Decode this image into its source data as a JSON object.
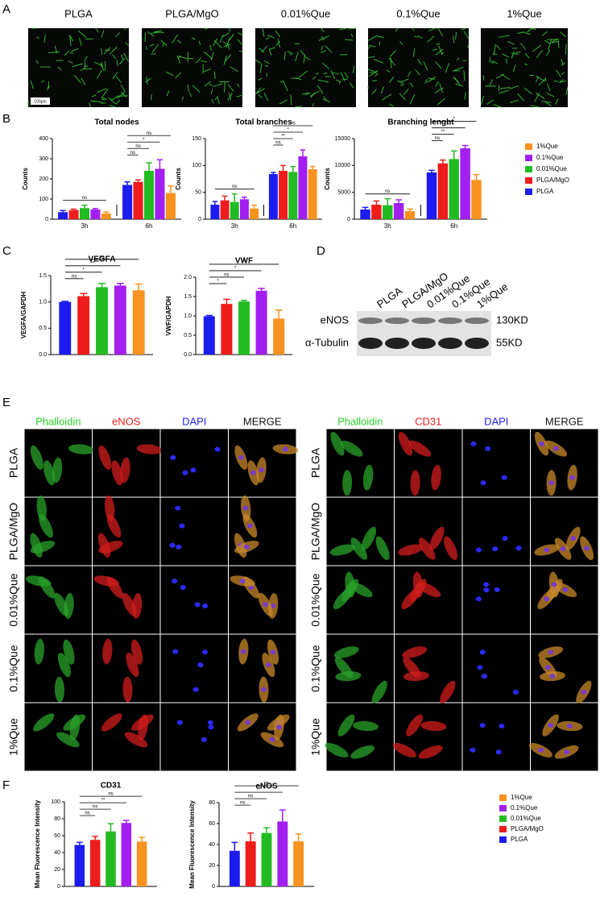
{
  "panel_letters": [
    "A",
    "B",
    "C",
    "D",
    "E",
    "F"
  ],
  "panel_a": {
    "labels": [
      "PLGA",
      "PLGA/MgO",
      "0.01%Que",
      "0.1%Que",
      "1%Que"
    ],
    "scale_bar": "100μm"
  },
  "chart_data": [
    {
      "type": "bar",
      "title": "Total nodes",
      "y_label": "Counts",
      "categories": [
        "3h",
        "6h"
      ],
      "ylim": [
        0,
        400
      ],
      "yticks": [
        0,
        100,
        200,
        300,
        400
      ],
      "series": [
        {
          "name": "PLGA",
          "color": "#1c1cf0",
          "values": [
            35,
            170
          ],
          "errors": [
            8,
            15
          ]
        },
        {
          "name": "PLGA/MgO",
          "color": "#ee1c1c",
          "values": [
            45,
            185
          ],
          "errors": [
            5,
            10
          ]
        },
        {
          "name": "0.01%Que",
          "color": "#22bb22",
          "values": [
            55,
            240
          ],
          "errors": [
            15,
            40
          ]
        },
        {
          "name": "0.1%Que",
          "color": "#a21ff0",
          "values": [
            48,
            250
          ],
          "errors": [
            5,
            45
          ]
        },
        {
          "name": "1%Que",
          "color": "#f7931e",
          "values": [
            28,
            130
          ],
          "errors": [
            8,
            35
          ]
        }
      ],
      "brackets": [
        {
          "text": "ns",
          "category": 0,
          "from": 0,
          "to": 4
        },
        {
          "text": "ns",
          "category": 1,
          "from": 0,
          "to": 1
        },
        {
          "text": "ns",
          "category": 1,
          "from": 0,
          "to": 2
        },
        {
          "text": "*",
          "category": 1,
          "from": 0,
          "to": 3
        },
        {
          "text": "ns",
          "category": 1,
          "from": 0,
          "to": 4
        }
      ]
    },
    {
      "type": "bar",
      "title": "Total branches",
      "y_label": "Counts",
      "categories": [
        "3h",
        "6h"
      ],
      "ylim": [
        0,
        150
      ],
      "yticks": [
        0,
        50,
        100,
        150
      ],
      "series": [
        {
          "name": "PLGA",
          "color": "#1c1cf0",
          "values": [
            27,
            84
          ],
          "errors": [
            6,
            3
          ]
        },
        {
          "name": "PLGA/MgO",
          "color": "#ee1c1c",
          "values": [
            35,
            90
          ],
          "errors": [
            8,
            10
          ]
        },
        {
          "name": "0.01%Que",
          "color": "#22bb22",
          "values": [
            32,
            88
          ],
          "errors": [
            15,
            10
          ]
        },
        {
          "name": "0.1%Que",
          "color": "#a21ff0",
          "values": [
            37,
            117
          ],
          "errors": [
            4,
            12
          ]
        },
        {
          "name": "1%Que",
          "color": "#f7931e",
          "values": [
            20,
            93
          ],
          "errors": [
            6,
            5
          ]
        }
      ],
      "brackets": [
        {
          "text": "ns",
          "category": 0,
          "from": 0,
          "to": 4
        },
        {
          "text": "ns",
          "category": 1,
          "from": 0,
          "to": 1
        },
        {
          "text": "**",
          "category": 1,
          "from": 0,
          "to": 2
        },
        {
          "text": "*",
          "category": 1,
          "from": 0,
          "to": 3
        },
        {
          "text": "ns",
          "category": 1,
          "from": 0,
          "to": 4
        }
      ]
    },
    {
      "type": "bar",
      "title": "Branching lenght",
      "y_label": "Counts",
      "categories": [
        "3h",
        "6h"
      ],
      "ylim": [
        0,
        15000
      ],
      "yticks": [
        0,
        5000,
        10000,
        15000
      ],
      "series": [
        {
          "name": "PLGA",
          "color": "#1c1cf0",
          "values": [
            1800,
            8700
          ],
          "errors": [
            400,
            400
          ]
        },
        {
          "name": "PLGA/MgO",
          "color": "#ee1c1c",
          "values": [
            2700,
            10400
          ],
          "errors": [
            700,
            600
          ]
        },
        {
          "name": "0.01%Que",
          "color": "#22bb22",
          "values": [
            2600,
            11200
          ],
          "errors": [
            1200,
            1500
          ]
        },
        {
          "name": "0.1%Que",
          "color": "#a21ff0",
          "values": [
            3000,
            13200
          ],
          "errors": [
            600,
            500
          ]
        },
        {
          "name": "1%Que",
          "color": "#f7931e",
          "values": [
            1500,
            7300
          ],
          "errors": [
            400,
            1000
          ]
        }
      ],
      "brackets": [
        {
          "text": "ns",
          "category": 0,
          "from": 0,
          "to": 4
        },
        {
          "text": "ns",
          "category": 1,
          "from": 0,
          "to": 1
        },
        {
          "text": "**",
          "category": 1,
          "from": 0,
          "to": 2
        },
        {
          "text": "*",
          "category": 1,
          "from": 0,
          "to": 3
        },
        {
          "text": "*",
          "category": 1,
          "from": 0,
          "to": 4
        }
      ]
    },
    {
      "type": "bar",
      "title": "VEGFA",
      "y_label": "VEGFA/GAPDH",
      "ylim": [
        0,
        1.5
      ],
      "yticks": [
        {
          "value": 0,
          "label": "0.0"
        },
        0.5,
        {
          "value": 1,
          "label": "1.0"
        },
        1.5
      ],
      "values": [
        1.0,
        1.11,
        1.28,
        1.31,
        1.22
      ],
      "errors": [
        0.01,
        0.05,
        0.07,
        0.04,
        0.12
      ],
      "colors": [
        "#1c1cf0",
        "#ee1c1c",
        "#22bb22",
        "#a21ff0",
        "#f7931e"
      ],
      "brackets": [
        {
          "text": "ns",
          "from": 0,
          "to": 1
        },
        {
          "text": "*",
          "from": 0,
          "to": 2
        },
        {
          "text": "**",
          "from": 0,
          "to": 3
        },
        {
          "text": "ns",
          "from": 0,
          "to": 4
        }
      ]
    },
    {
      "type": "bar",
      "title": "VWF",
      "y_label": "VWF/GAPDH",
      "ylim": [
        0,
        2
      ],
      "yticks": [
        {
          "value": 0,
          "label": "0.0"
        },
        0.5,
        {
          "value": 1,
          "label": "1.0"
        },
        1.5,
        {
          "value": 2,
          "label": "2.0"
        }
      ],
      "values": [
        0.99,
        1.31,
        1.37,
        1.65,
        0.93
      ],
      "errors": [
        0.02,
        0.12,
        0.03,
        0.06,
        0.22
      ],
      "colors": [
        "#1c1cf0",
        "#ee1c1c",
        "#22bb22",
        "#a21ff0",
        "#f7931e"
      ],
      "brackets": [
        {
          "text": "*",
          "from": 0,
          "to": 1
        },
        {
          "text": "ns",
          "from": 0,
          "to": 2
        },
        {
          "text": "*",
          "from": 0,
          "to": 3
        },
        {
          "text": "*",
          "from": 0,
          "to": 4
        }
      ]
    },
    {
      "type": "bar",
      "title": "CD31",
      "y_label": "Mean Fluorescence Intensity",
      "ylim": [
        0,
        100
      ],
      "yticks": [
        0,
        20,
        40,
        60,
        80,
        100
      ],
      "series": [
        {
          "name": "PLGA",
          "color": "#1c1cf0",
          "values": [
            49
          ],
          "errors": [
            3
          ]
        },
        {
          "name": "PLGA/MgO",
          "color": "#ee1c1c",
          "values": [
            55
          ],
          "errors": [
            4
          ]
        },
        {
          "name": "0.01%Que",
          "color": "#22bb22",
          "values": [
            65
          ],
          "errors": [
            9
          ]
        },
        {
          "name": "0.1%Que",
          "color": "#a21ff0",
          "values": [
            75
          ],
          "errors": [
            3
          ]
        },
        {
          "name": "1%Que",
          "color": "#f7931e",
          "values": [
            53
          ],
          "errors": [
            5
          ]
        }
      ],
      "brackets": [
        {
          "text": "ns",
          "from": 0,
          "to": 1
        },
        {
          "text": "ns",
          "from": 0,
          "to": 2
        },
        {
          "text": "**",
          "from": 0,
          "to": 3
        },
        {
          "text": "ns",
          "from": 0,
          "to": 4
        }
      ]
    },
    {
      "type": "bar",
      "title": "eNOS",
      "y_label": "Mean Fluorescence Intensity",
      "ylim": [
        0,
        80
      ],
      "yticks": [
        0,
        20,
        40,
        60,
        80
      ],
      "series": [
        {
          "name": "PLGA",
          "color": "#1c1cf0",
          "values": [
            34
          ],
          "errors": [
            8
          ]
        },
        {
          "name": "PLGA/MgO",
          "color": "#ee1c1c",
          "values": [
            43
          ],
          "errors": [
            8
          ]
        },
        {
          "name": "0.01%Que",
          "color": "#22bb22",
          "values": [
            51
          ],
          "errors": [
            5
          ]
        },
        {
          "name": "0.1%Que",
          "color": "#a21ff0",
          "values": [
            62
          ],
          "errors": [
            11
          ]
        },
        {
          "name": "1%Que",
          "color": "#f7931e",
          "values": [
            43
          ],
          "errors": [
            7
          ]
        }
      ],
      "brackets": [
        {
          "text": "ns",
          "from": 0,
          "to": 1
        },
        {
          "text": "ns",
          "from": 0,
          "to": 2
        },
        {
          "text": "**",
          "from": 0,
          "to": 3
        },
        {
          "text": "ns",
          "from": 0,
          "to": 4
        }
      ]
    }
  ],
  "western_blot": {
    "lanes": [
      "PLGA",
      "PLGA/MgO",
      "0.01%Que",
      "0.1%Que",
      "1%Que"
    ],
    "rows": [
      {
        "protein": "eNOS",
        "size": "130KD"
      },
      {
        "protein": "α-Tubulin",
        "size": "55KD"
      }
    ]
  },
  "panel_e": {
    "left_columns": [
      "Phalloidin",
      "eNOS",
      "DAPI",
      "MERGE"
    ],
    "right_columns": [
      "Phalloidin",
      "CD31",
      "DAPI",
      "MERGE"
    ],
    "rows": [
      "PLGA",
      "PLGA/MgO",
      "0.01%Que",
      "0.1%Que",
      "1%Que"
    ]
  }
}
